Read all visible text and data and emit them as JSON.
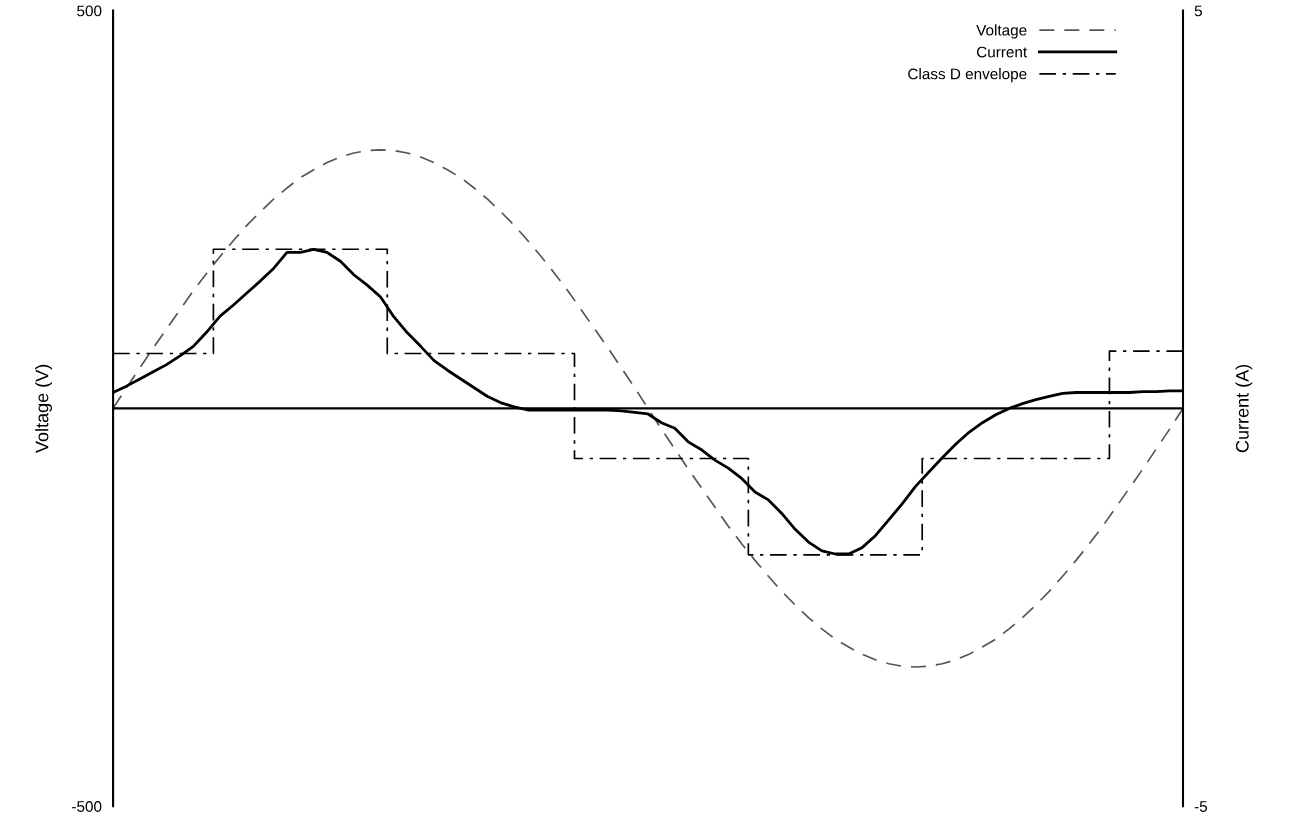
{
  "chart_data": {
    "type": "line",
    "categories": [
      null,
      null,
      null,
      null,
      null,
      null,
      null,
      null,
      null,
      null,
      null,
      null,
      null,
      null,
      null,
      null,
      null,
      null,
      null,
      null,
      null,
      null,
      null,
      null,
      null,
      null,
      null,
      null,
      null,
      null,
      null,
      null,
      null,
      null,
      null,
      null,
      null,
      null,
      null,
      null,
      null,
      null,
      null,
      null,
      null,
      null,
      null,
      null,
      null,
      null,
      null,
      null,
      null,
      null,
      null,
      null,
      null,
      null,
      null,
      null,
      null,
      null,
      null,
      null,
      null,
      null,
      null,
      null,
      null,
      null,
      null,
      null,
      null,
      null,
      null,
      null,
      null,
      null,
      null,
      null,
      null
    ],
    "ylabel": "Voltage (V)",
    "y2label": "Current (A)",
    "ylim": [
      -500,
      500
    ],
    "yticks": [
      -500,
      500
    ],
    "y2lim": [
      -5,
      5
    ],
    "y2ticks": [
      -5,
      5
    ],
    "tick_labels": "y",
    "grid": false,
    "legend": "top right",
    "series": [
      {
        "name": "Voltage",
        "color": "#555555",
        "line_style": "dashed",
        "values": [
          0,
          26,
          51,
          76,
          100,
          124,
          148,
          170,
          191,
          211,
          230,
          247,
          263,
          277,
          290,
          300,
          309,
          316,
          321,
          324,
          325,
          324,
          321,
          316,
          309,
          300,
          290,
          277,
          263,
          247,
          230,
          211,
          191,
          170,
          148,
          124,
          100,
          76,
          51,
          26,
          0,
          -26,
          -51,
          -76,
          -100,
          -124,
          -148,
          -170,
          -191,
          -211,
          -230,
          -247,
          -263,
          -277,
          -290,
          -300,
          -309,
          -316,
          -321,
          -324,
          -325,
          -324,
          -321,
          -316,
          -309,
          -300,
          -290,
          -277,
          -263,
          -247,
          -230,
          -211,
          -191,
          -170,
          -148,
          -124,
          -100,
          -76,
          -51,
          -26,
          0
        ]
      },
      {
        "name": "Current",
        "color": "#000000",
        "line_style": "solid",
        "axis": "y2",
        "values": [
          0.2,
          0.28,
          0.37,
          0.46,
          0.55,
          0.66,
          0.78,
          0.96,
          1.16,
          1.3,
          1.45,
          1.6,
          1.76,
          1.96,
          1.96,
          2.0,
          1.96,
          1.85,
          1.68,
          1.55,
          1.4,
          1.15,
          0.95,
          0.78,
          0.6,
          0.48,
          0.37,
          0.26,
          0.15,
          0.07,
          0.02,
          -0.02,
          -0.02,
          -0.02,
          -0.02,
          -0.02,
          -0.02,
          -0.02,
          -0.03,
          -0.05,
          -0.07,
          -0.18,
          -0.25,
          -0.42,
          -0.52,
          -0.65,
          -0.75,
          -0.88,
          -1.05,
          -1.15,
          -1.32,
          -1.52,
          -1.68,
          -1.79,
          -1.83,
          -1.83,
          -1.75,
          -1.6,
          -1.4,
          -1.2,
          -0.98,
          -0.8,
          -0.62,
          -0.45,
          -0.3,
          -0.18,
          -0.08,
          0,
          0.06,
          0.11,
          0.15,
          0.19,
          0.2,
          0.2,
          0.2,
          0.2,
          0.2,
          0.21,
          0.21,
          0.22,
          0.22
        ]
      },
      {
        "name": "Class D envelope",
        "type": "step",
        "color": "#000000",
        "line_style": "dashdot",
        "axis": "y2",
        "values": [
          0.69,
          0.69,
          0.69,
          0.69,
          0.69,
          0.69,
          0.69,
          0.69,
          2.0,
          2.0,
          2.0,
          2.0,
          2.0,
          2.0,
          2.0,
          2.0,
          2.0,
          2.0,
          2.0,
          2.0,
          2.0,
          0.69,
          0.69,
          0.69,
          0.69,
          0.69,
          0.69,
          0.69,
          0.69,
          0.69,
          0.69,
          0.69,
          0.69,
          0.69,
          0.69,
          -0.63,
          -0.63,
          -0.63,
          -0.63,
          -0.63,
          -0.63,
          -0.63,
          -0.63,
          -0.63,
          -0.63,
          -0.63,
          -0.63,
          -0.63,
          -1.84,
          -1.84,
          -1.84,
          -1.84,
          -1.84,
          -1.84,
          -1.84,
          -1.84,
          -1.84,
          -1.84,
          -1.84,
          -1.84,
          -1.84,
          -0.63,
          -0.63,
          -0.63,
          -0.63,
          -0.63,
          -0.63,
          -0.63,
          -0.63,
          -0.63,
          -0.63,
          -0.63,
          -0.63,
          -0.63,
          -0.63,
          0.72,
          0.72,
          0.72,
          0.72,
          0.72,
          0.72
        ]
      }
    ]
  }
}
